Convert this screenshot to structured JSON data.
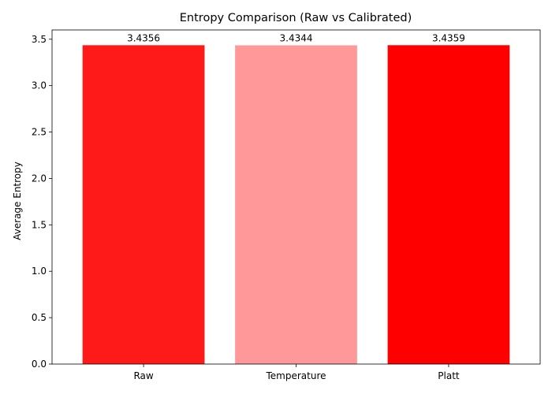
{
  "chart_data": {
    "type": "bar",
    "title": "Entropy Comparison (Raw vs Calibrated)",
    "xlabel": "",
    "ylabel": "Average Entropy",
    "categories": [
      "Raw",
      "Temperature",
      "Platt"
    ],
    "values": [
      3.4356,
      3.4344,
      3.4359
    ],
    "value_labels": [
      "3.4356",
      "3.4344",
      "3.4359"
    ],
    "colors": [
      "#ff1a1a",
      "#ff9999",
      "#ff0000"
    ],
    "ylim": [
      0,
      3.6
    ],
    "yticks": [
      0.0,
      0.5,
      1.0,
      1.5,
      2.0,
      2.5,
      3.0,
      3.5
    ],
    "ytick_labels": [
      "0.0",
      "0.5",
      "1.0",
      "1.5",
      "2.0",
      "2.5",
      "3.0",
      "3.5"
    ],
    "grid": false,
    "legend": "none"
  }
}
